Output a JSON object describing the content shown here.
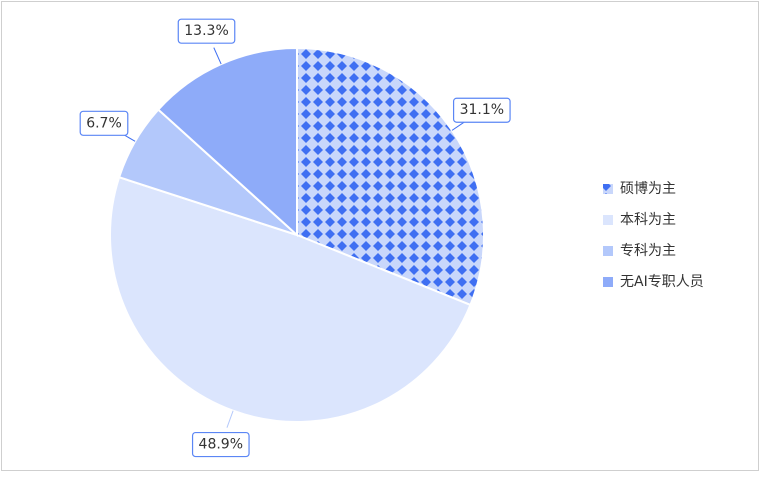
{
  "chart_data": {
    "type": "pie",
    "categories": [
      "硕博为主",
      "本科为主",
      "专科为主",
      "无AI专职人员"
    ],
    "values": [
      31.1,
      48.9,
      6.7,
      13.3
    ],
    "value_labels": [
      "31.1%",
      "48.9%",
      "6.7%",
      "13.3%"
    ],
    "colors": [
      "#3f6ff2",
      "#dbe5fd",
      "#b3c8fb",
      "#8eabf9"
    ],
    "patterned": [
      true,
      false,
      false,
      false
    ],
    "legend": "right"
  }
}
